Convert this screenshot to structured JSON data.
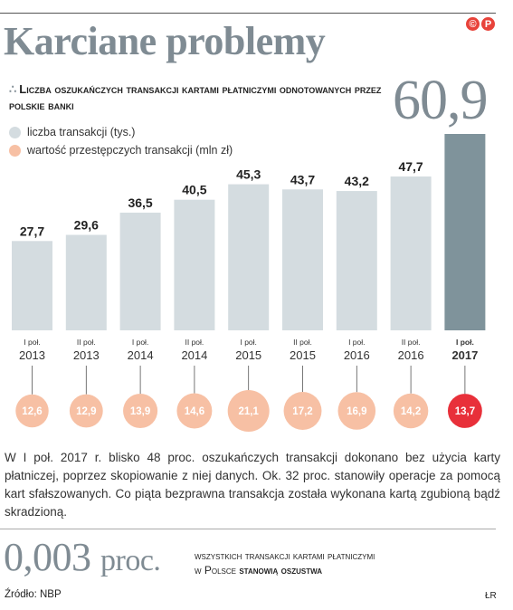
{
  "logo": {
    "letters": [
      "©",
      "P"
    ]
  },
  "title": "Karciane problemy",
  "subtitle": "Liczba oszukańczych transakcji kartami płatniczymi odnotowanych przez polskie banki",
  "legend": {
    "transactions": "liczba transakcji (tys.)",
    "value": "wartość przestępczych transakcji (mln zł)"
  },
  "colors": {
    "bar": "#d4dce0",
    "bar_highlight": "#7f939b",
    "circle": "#f7c0a4",
    "circle_highlight": "#e8303a",
    "accent_gray": "#7f8b93"
  },
  "chart_data": {
    "type": "bar",
    "categories": [
      {
        "period": "I poł.",
        "year": "2013"
      },
      {
        "period": "II poł.",
        "year": "2013"
      },
      {
        "period": "I poł.",
        "year": "2014"
      },
      {
        "period": "II poł.",
        "year": "2014"
      },
      {
        "period": "I poł.",
        "year": "2015"
      },
      {
        "period": "II poł.",
        "year": "2015"
      },
      {
        "period": "I poł.",
        "year": "2016"
      },
      {
        "period": "II poł.",
        "year": "2016"
      },
      {
        "period": "I poł.",
        "year": "2017"
      }
    ],
    "series": [
      {
        "name": "liczba transakcji (tys.)",
        "values": [
          27.7,
          29.6,
          36.5,
          40.5,
          45.3,
          43.7,
          43.2,
          47.7,
          60.9
        ],
        "labels": [
          "27,7",
          "29,6",
          "36,5",
          "40,5",
          "45,3",
          "43,7",
          "43,2",
          "47,7",
          "60,9"
        ]
      },
      {
        "name": "wartość przestępczych transakcji (mln zł)",
        "values": [
          12.6,
          12.9,
          13.9,
          14.6,
          21.1,
          17.2,
          16.9,
          14.2,
          13.7
        ],
        "labels": [
          "12,6",
          "12,9",
          "13,9",
          "14,6",
          "21,1",
          "17,2",
          "16,9",
          "14,2",
          "13,7"
        ]
      }
    ],
    "highlight_index": 8,
    "ylim": [
      0,
      60.9
    ]
  },
  "body_text": "W I poł. 2017 r. blisko 48 proc. oszukańczych transakcji dokonano bez użycia karty płatniczej, poprzez skopiowanie z niej danych. Ok. 32 proc. stanowiły operacje za pomocą kart sfałszowanych. Co piąta bezprawna transakcja została wykonana kartą zgubioną bądź skradzioną.",
  "stat": {
    "value": "0,003",
    "unit": "proc.",
    "note_line1": "wszystkich transakcji kartami płatniczymi",
    "note_line2_plain": "w Polsce ",
    "note_line2_bold": "stanowią oszustwa"
  },
  "source": "Źródło: NBP",
  "author": "ŁR"
}
